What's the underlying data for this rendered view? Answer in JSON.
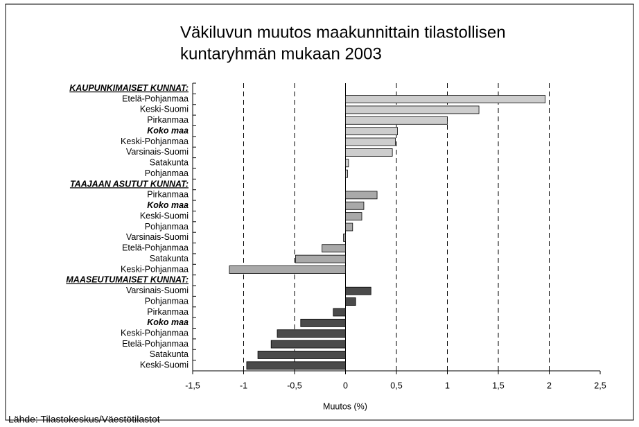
{
  "chart_data": {
    "type": "barh",
    "title": [
      "Väkiluvun muutos maakunnittain tilastollisen",
      "kuntaryhmän mukaan 2003"
    ],
    "xlabel": "Muutos (%)",
    "source": "Lähde: Tilastokeskus/Väestötilastot",
    "categories": [
      "KAUPUNKIMAISET KUNNAT:",
      "Etelä-Pohjanmaa",
      "Keski-Suomi",
      "Pirkanmaa",
      "Koko maa",
      "Keski-Pohjanmaa",
      "Varsinais-Suomi",
      "Satakunta",
      "Pohjanmaa",
      "TAAJAAN ASUTUT KUNNAT:",
      "Pirkanmaa",
      "Koko maa",
      "Keski-Suomi",
      "Pohjanmaa",
      "Varsinais-Suomi",
      "Etelä-Pohjanmaa",
      "Satakunta",
      "Keski-Pohjanmaa",
      "MAASEUTUMAISET KUNNAT:",
      "Varsinais-Suomi",
      "Pohjanmaa",
      "Pirkanmaa",
      "Koko maa",
      "Keski-Pohjanmaa",
      "Etelä-Pohjanmaa",
      "Satakunta",
      "Keski-Suomi"
    ],
    "values": [
      null,
      1.96,
      1.31,
      1.0,
      0.51,
      0.49,
      0.46,
      0.03,
      0.02,
      null,
      0.31,
      0.18,
      0.16,
      0.07,
      -0.02,
      -0.23,
      -0.49,
      -1.14,
      null,
      0.25,
      0.1,
      -0.12,
      -0.44,
      -0.67,
      -0.73,
      -0.86,
      -0.97
    ],
    "colors": [
      null,
      "#cdcdcd",
      "#cdcdcd",
      "#cdcdcd",
      "#cdcdcd",
      "#cdcdcd",
      "#cdcdcd",
      "#cdcdcd",
      "#cdcdcd",
      null,
      "#a9a9a9",
      "#a9a9a9",
      "#a9a9a9",
      "#a9a9a9",
      "#a9a9a9",
      "#a9a9a9",
      "#a9a9a9",
      "#a9a9a9",
      null,
      "#4a4a4a",
      "#4a4a4a",
      "#4a4a4a",
      "#4a4a4a",
      "#4a4a4a",
      "#4a4a4a",
      "#4a4a4a",
      "#4a4a4a"
    ],
    "highlight": [
      4,
      11,
      22
    ],
    "xlim": [
      -1.5,
      2.5
    ],
    "xticks": [
      {
        "value": -1.5,
        "label": "-1,5"
      },
      -1,
      {
        "value": -0.5,
        "label": "-0,5"
      },
      0,
      {
        "value": 0.5,
        "label": "0,5"
      },
      1,
      {
        "value": 1.5,
        "label": "1,5"
      },
      2,
      {
        "value": 2.5,
        "label": "2,5"
      }
    ],
    "grid": true
  }
}
